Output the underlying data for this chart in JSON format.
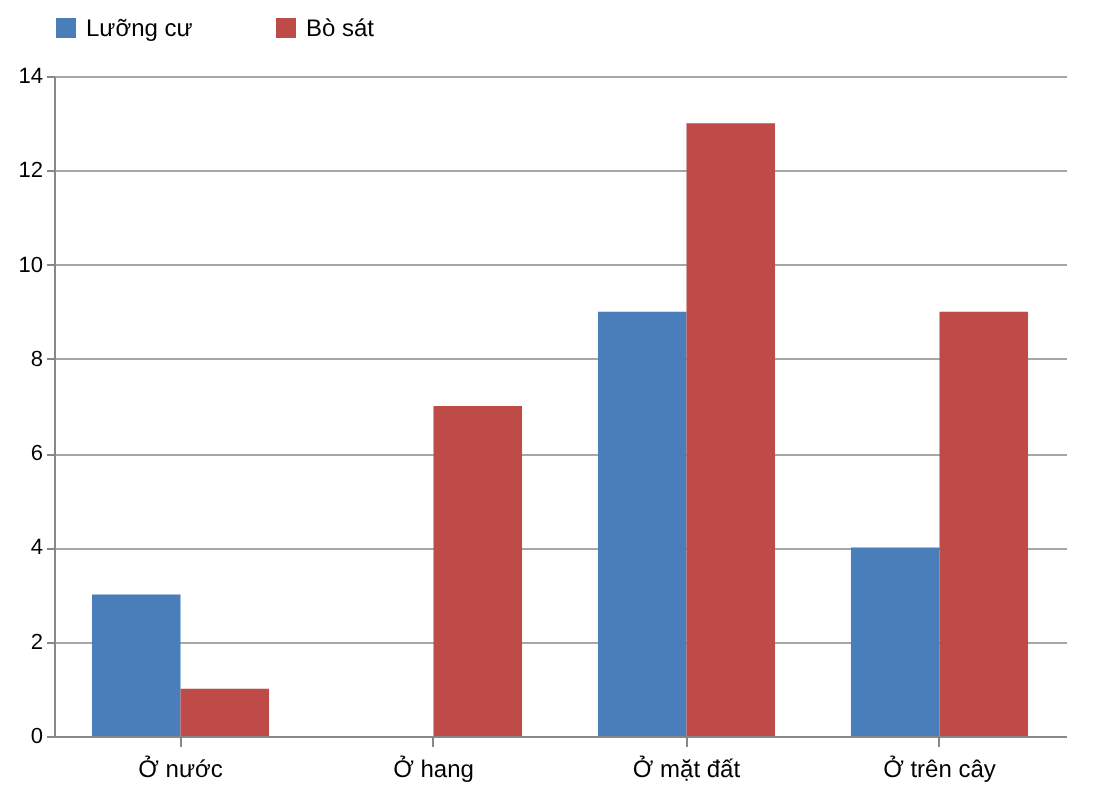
{
  "chart_data": {
    "type": "bar",
    "categories": [
      "Ở nước",
      "Ở hang",
      "Ở mặt đất",
      "Ở trên cây"
    ],
    "series": [
      {
        "name": "Lưỡng cư",
        "color": "#4a7ebb",
        "values": [
          3,
          null,
          9,
          4
        ]
      },
      {
        "name": "Bò sát",
        "color": "#be4b48",
        "values": [
          1,
          7,
          13,
          9
        ]
      }
    ],
    "ylim": [
      0,
      14
    ],
    "yticks": [
      0,
      2,
      4,
      6,
      8,
      10,
      12,
      14
    ],
    "grid": "y",
    "legend": "top"
  }
}
